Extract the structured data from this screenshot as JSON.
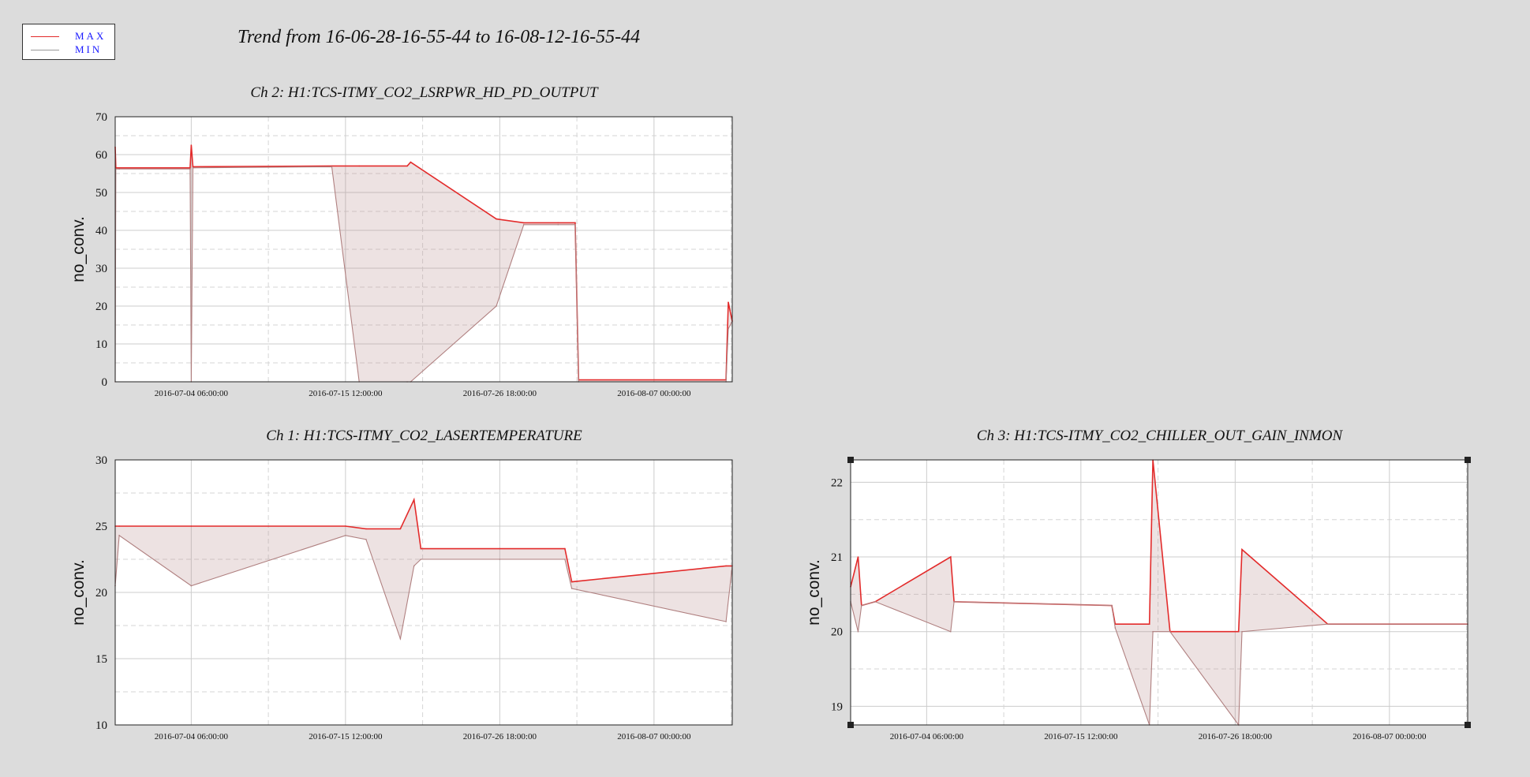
{
  "main_title": "Trend from 16-06-28-16-55-44 to 16-08-12-16-55-44",
  "legend": [
    {
      "label": "MAX",
      "color": "#e32b2b"
    },
    {
      "label": "MIN",
      "color": "#999999"
    }
  ],
  "colors": {
    "max": "#e32b2b",
    "min": "#b08080",
    "fill": "#b88a8a",
    "grid": "#cccccc",
    "background": "#dcdcdc"
  },
  "chart_data": [
    {
      "type": "line",
      "title": "Ch 2: H1:TCS-ITMY_CO2_LSRPWR_HD_PD_OUTPUT",
      "ylabel": "no_conv.",
      "xlabel": "",
      "xlim": [
        "2016-06-28 16:55:44",
        "2016-08-12 16:55:44"
      ],
      "ylim": [
        0,
        70
      ],
      "yticks": [
        "0",
        "10",
        "20",
        "30",
        "40",
        "50",
        "60",
        "70"
      ],
      "xticks": [
        "2016-07-04 06:00:00",
        "2016-07-15 12:00:00",
        "2016-07-26 18:00:00",
        "2016-08-07 00:00:00"
      ],
      "grid": true,
      "series": [
        {
          "name": "MAX",
          "color": "#e32b2b",
          "x": [
            "2016-06-28 16:55:44",
            "2016-06-28 18:00:00",
            "2016-06-29 00:00:00",
            "2016-07-04 04:00:00",
            "2016-07-04 06:00:00",
            "2016-07-04 09:00:00",
            "2016-07-14 12:00:00",
            "2016-07-16 12:00:00",
            "2016-07-20 00:00:00",
            "2016-07-20 06:00:00",
            "2016-07-26 12:00:00",
            "2016-07-28 12:00:00",
            "2016-07-31 00:00:00",
            "2016-08-01 06:00:00",
            "2016-08-01 12:00:00",
            "2016-08-12 06:00:00",
            "2016-08-12 10:00:00",
            "2016-08-12 16:55:44"
          ],
          "y": [
            62,
            56.5,
            56.5,
            56.5,
            62.5,
            56.8,
            57,
            57,
            57,
            58,
            43,
            42,
            42,
            42,
            0.5,
            0.5,
            21,
            16
          ]
        },
        {
          "name": "MIN",
          "color": "#999999",
          "x": [
            "2016-06-28 16:55:44",
            "2016-06-28 18:00:00",
            "2016-06-29 00:00:00",
            "2016-07-04 04:00:00",
            "2016-07-04 06:00:00",
            "2016-07-04 09:00:00",
            "2016-07-14 12:00:00",
            "2016-07-16 12:00:00",
            "2016-07-20 00:00:00",
            "2016-07-20 06:00:00",
            "2016-07-26 12:00:00",
            "2016-07-28 12:00:00",
            "2016-07-31 00:00:00",
            "2016-08-01 06:00:00",
            "2016-08-01 12:00:00",
            "2016-08-12 06:00:00",
            "2016-08-12 10:00:00",
            "2016-08-12 16:55:44"
          ],
          "y": [
            0,
            56.2,
            56.2,
            56.2,
            0,
            56.5,
            56.8,
            0,
            0,
            0,
            20,
            41.5,
            41.5,
            41.5,
            0,
            0,
            14,
            16
          ]
        }
      ]
    },
    {
      "type": "line",
      "title": "Ch 1: H1:TCS-ITMY_CO2_LASERTEMPERATURE",
      "ylabel": "no_conv.",
      "xlabel": "",
      "xlim": [
        "2016-06-28 16:55:44",
        "2016-08-12 16:55:44"
      ],
      "ylim": [
        10,
        30
      ],
      "yticks": [
        "10",
        "15",
        "20",
        "25",
        "30"
      ],
      "xticks": [
        "2016-07-04 06:00:00",
        "2016-07-15 12:00:00",
        "2016-07-26 18:00:00",
        "2016-08-07 00:00:00"
      ],
      "grid": true,
      "series": [
        {
          "name": "MAX",
          "color": "#e32b2b",
          "x": [
            "2016-06-28 16:55:44",
            "2016-06-29 00:00:00",
            "2016-07-04 06:00:00",
            "2016-07-15 12:00:00",
            "2016-07-17 00:00:00",
            "2016-07-19 12:00:00",
            "2016-07-20 12:00:00",
            "2016-07-21 00:00:00",
            "2016-07-26 18:00:00",
            "2016-07-31 12:00:00",
            "2016-08-01 00:00:00",
            "2016-08-12 06:00:00",
            "2016-08-12 16:55:44"
          ],
          "y": [
            25,
            25,
            25,
            25,
            24.8,
            24.8,
            27,
            23.3,
            23.3,
            23.3,
            20.8,
            22,
            22
          ]
        },
        {
          "name": "MIN",
          "color": "#999999",
          "x": [
            "2016-06-28 16:55:44",
            "2016-06-29 00:00:00",
            "2016-07-04 06:00:00",
            "2016-07-15 12:00:00",
            "2016-07-17 00:00:00",
            "2016-07-19 12:00:00",
            "2016-07-20 12:00:00",
            "2016-07-21 00:00:00",
            "2016-07-26 18:00:00",
            "2016-07-31 12:00:00",
            "2016-08-01 00:00:00",
            "2016-08-12 06:00:00",
            "2016-08-12 16:55:44"
          ],
          "y": [
            20.5,
            24.3,
            20.5,
            24.3,
            24,
            16.5,
            22,
            22.5,
            22.5,
            22.5,
            20.3,
            17.8,
            22
          ]
        }
      ]
    },
    {
      "type": "line",
      "title": "Ch 3: H1:TCS-ITMY_CO2_CHILLER_OUT_GAIN_INMON",
      "ylabel": "no_conv.",
      "xlabel": "",
      "xlim": [
        "2016-06-28 16:55:44",
        "2016-08-12 16:55:44"
      ],
      "ylim": [
        18.75,
        22.3
      ],
      "yticks": [
        "19",
        "20",
        "21",
        "22"
      ],
      "xticks": [
        "2016-07-04 06:00:00",
        "2016-07-15 12:00:00",
        "2016-07-26 18:00:00",
        "2016-08-07 00:00:00"
      ],
      "grid": true,
      "series": [
        {
          "name": "MAX",
          "color": "#e32b2b",
          "x": [
            "2016-06-28 16:55:44",
            "2016-06-29 06:00:00",
            "2016-06-29 12:00:00",
            "2016-06-30 12:00:00",
            "2016-07-06 00:00:00",
            "2016-07-06 06:00:00",
            "2016-07-17 18:00:00",
            "2016-07-18 00:00:00",
            "2016-07-20 12:00:00",
            "2016-07-20 18:00:00",
            "2016-07-22 00:00:00",
            "2016-07-27 00:00:00",
            "2016-07-27 06:00:00",
            "2016-08-02 12:00:00",
            "2016-08-12 16:55:44"
          ],
          "y": [
            20.6,
            21,
            20.35,
            20.4,
            21,
            20.4,
            20.35,
            20.1,
            20.1,
            22.3,
            20,
            20,
            21.1,
            20.1,
            20.1
          ]
        },
        {
          "name": "MIN",
          "color": "#999999",
          "x": [
            "2016-06-28 16:55:44",
            "2016-06-29 06:00:00",
            "2016-06-29 12:00:00",
            "2016-06-30 12:00:00",
            "2016-07-06 00:00:00",
            "2016-07-06 06:00:00",
            "2016-07-17 18:00:00",
            "2016-07-18 00:00:00",
            "2016-07-20 12:00:00",
            "2016-07-20 18:00:00",
            "2016-07-22 00:00:00",
            "2016-07-27 00:00:00",
            "2016-07-27 06:00:00",
            "2016-08-02 12:00:00",
            "2016-08-12 16:55:44"
          ],
          "y": [
            20.4,
            20,
            20.35,
            20.4,
            20,
            20.4,
            20.35,
            20.05,
            18.75,
            20,
            20,
            18.75,
            20,
            20.1,
            20.1
          ]
        }
      ]
    }
  ]
}
